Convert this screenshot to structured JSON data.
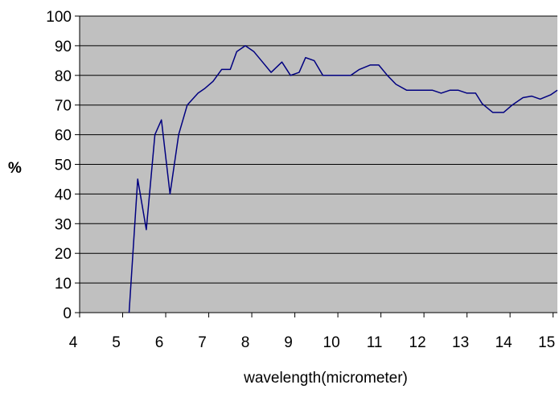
{
  "chart_data": {
    "type": "line",
    "title": "",
    "xlabel": "wavelength(micrometer)",
    "ylabel": "%",
    "xlim": [
      4,
      15.1
    ],
    "ylim": [
      0,
      100
    ],
    "x_ticks": [
      "4",
      "5",
      "6",
      "7",
      "8",
      "9",
      "10",
      "11",
      "12",
      "13",
      "14",
      "15"
    ],
    "y_ticks": [
      "0",
      "10",
      "20",
      "30",
      "40",
      "50",
      "60",
      "70",
      "80",
      "90",
      "100"
    ],
    "grid": "horizontal",
    "plot_background": "#c0c0c0",
    "line_color": "#000080",
    "series": [
      {
        "points": [
          [
            5.15,
            0
          ],
          [
            5.35,
            45
          ],
          [
            5.55,
            28
          ],
          [
            5.75,
            60
          ],
          [
            5.9,
            65
          ],
          [
            6.1,
            40
          ],
          [
            6.3,
            60
          ],
          [
            6.5,
            70
          ],
          [
            6.75,
            74
          ],
          [
            6.9,
            75.5
          ],
          [
            7.1,
            78
          ],
          [
            7.3,
            82
          ],
          [
            7.5,
            82
          ],
          [
            7.65,
            88
          ],
          [
            7.85,
            90
          ],
          [
            8.05,
            88
          ],
          [
            8.25,
            84.5
          ],
          [
            8.45,
            81
          ],
          [
            8.7,
            84.5
          ],
          [
            8.9,
            80
          ],
          [
            9.1,
            81
          ],
          [
            9.25,
            86
          ],
          [
            9.45,
            85
          ],
          [
            9.65,
            80
          ],
          [
            9.85,
            80
          ],
          [
            10.1,
            80
          ],
          [
            10.3,
            80
          ],
          [
            10.5,
            82
          ],
          [
            10.75,
            83.5
          ],
          [
            10.95,
            83.5
          ],
          [
            11.15,
            80
          ],
          [
            11.35,
            77
          ],
          [
            11.6,
            75
          ],
          [
            11.85,
            75
          ],
          [
            12.05,
            75
          ],
          [
            12.2,
            75
          ],
          [
            12.4,
            74
          ],
          [
            12.6,
            75
          ],
          [
            12.8,
            75
          ],
          [
            13.0,
            74
          ],
          [
            13.2,
            74
          ],
          [
            13.35,
            70.5
          ],
          [
            13.6,
            67.5
          ],
          [
            13.85,
            67.5
          ],
          [
            14.05,
            70
          ],
          [
            14.3,
            72.5
          ],
          [
            14.5,
            73
          ],
          [
            14.7,
            72
          ],
          [
            14.95,
            73.5
          ],
          [
            15.1,
            75
          ]
        ]
      }
    ]
  }
}
